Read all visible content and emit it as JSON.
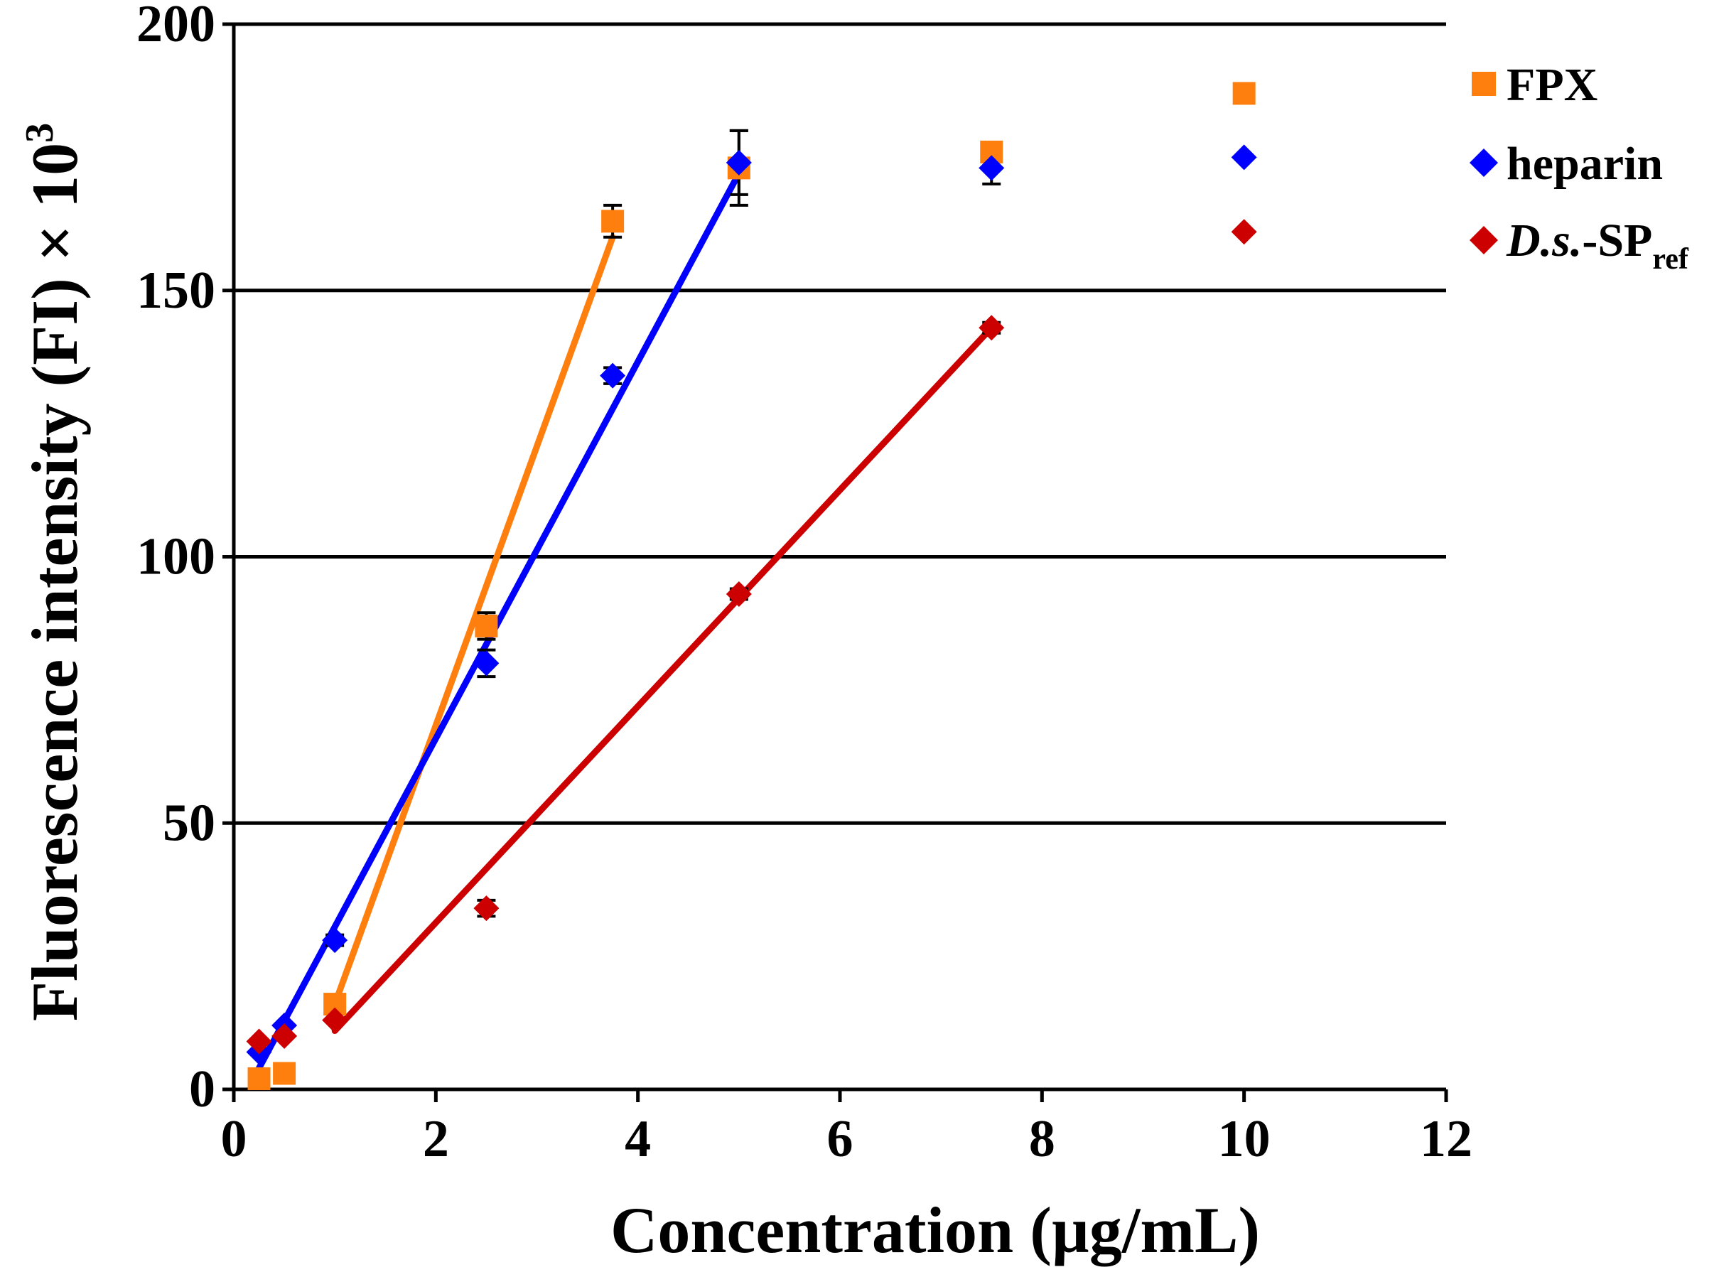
{
  "chart_data": {
    "type": "scatter",
    "title": "",
    "xlabel": "Concentration (µg/mL)",
    "ylabel": "Fluorescence intensity (FI) × 10",
    "ylabel_superscript": "3",
    "xlim": [
      0,
      12
    ],
    "ylim": [
      0,
      200
    ],
    "x_ticks": [
      "0",
      "2",
      "4",
      "6",
      "8",
      "10",
      "12"
    ],
    "y_ticks": [
      "0",
      "50",
      "100",
      "150",
      "200"
    ],
    "grid": "horizontal",
    "legend_position": "top-right",
    "series": [
      {
        "name": "FPX",
        "color": "#ff7f0e",
        "marker": "square",
        "x": [
          0.25,
          0.5,
          1,
          2.5,
          3.75,
          5,
          7.5,
          10
        ],
        "y": [
          2,
          3,
          16,
          87,
          163,
          173,
          176,
          187
        ],
        "error": [
          0,
          0,
          0,
          2.5,
          3,
          7,
          1,
          1
        ],
        "fit": {
          "x": [
            1,
            3.75
          ],
          "y": [
            16,
            160
          ]
        }
      },
      {
        "name": "heparin",
        "color": "#0000ff",
        "marker": "diamond",
        "x": [
          0.25,
          0.5,
          1,
          2.5,
          3.75,
          5,
          7.5,
          10
        ],
        "y": [
          7,
          12,
          28,
          80,
          134,
          174,
          173,
          175
        ],
        "error": [
          0,
          0,
          1,
          2.5,
          1.5,
          6,
          3,
          0
        ],
        "fit": {
          "x": [
            0.25,
            5
          ],
          "y": [
            4,
            172
          ]
        }
      },
      {
        "name_main": "D.s.",
        "name_rest": "-SP",
        "name_sub": "ref",
        "color": "#cc0000",
        "marker": "diamond",
        "x": [
          0.25,
          0.5,
          1,
          2.5,
          5,
          7.5,
          10
        ],
        "y": [
          9,
          10,
          13,
          34,
          93,
          143,
          161
        ],
        "error": [
          0,
          0,
          0,
          1.5,
          1,
          1,
          0
        ],
        "fit": {
          "x": [
            1,
            7.5
          ],
          "y": [
            11,
            143
          ]
        }
      }
    ]
  }
}
